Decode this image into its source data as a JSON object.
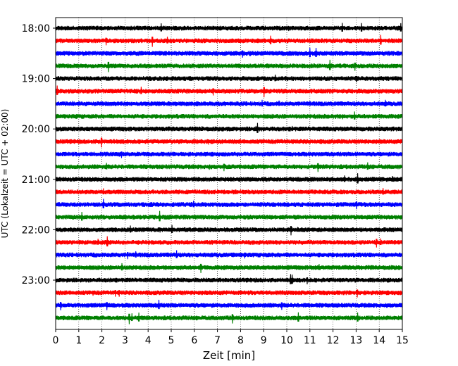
{
  "chart_data": {
    "type": "line",
    "title": "",
    "xlabel": "Zeit  [min]",
    "ylabel": "UTC (Lokalzeit = UTC + 02:00)",
    "xlim": [
      0,
      15
    ],
    "x_ticks": [
      0,
      1,
      2,
      3,
      4,
      5,
      6,
      7,
      8,
      9,
      10,
      11,
      12,
      13,
      14,
      15
    ],
    "y_tick_labels": [
      "18:00",
      "19:00",
      "20:00",
      "21:00",
      "22:00",
      "23:00"
    ],
    "grid": "vertical dotted lines at each minute",
    "trace_interval_minutes": 15,
    "series": [
      {
        "values": [
          "18:00",
          "18:15",
          "18:30",
          "18:45",
          "19:00",
          "19:15",
          "19:30",
          "19:45",
          "20:00",
          "20:15",
          "20:30",
          "20:45",
          "21:00",
          "21:15",
          "21:30",
          "21:45",
          "22:00",
          "22:15",
          "22:30",
          "22:45",
          "23:00",
          "23:15",
          "23:30",
          "23:45"
        ]
      }
    ],
    "trace_colors": [
      "#000000",
      "#ff0000",
      "#0000ff",
      "#008000"
    ]
  }
}
